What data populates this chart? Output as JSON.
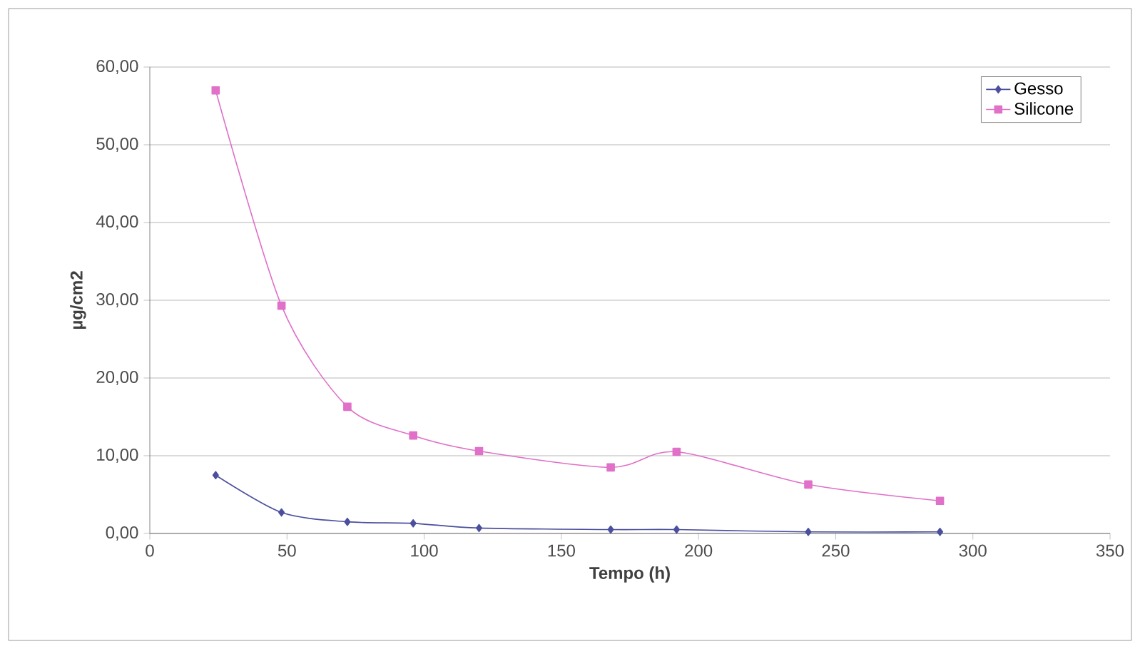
{
  "chart_data": {
    "type": "line",
    "xlabel": "Tempo (h)",
    "ylabel": "µg/cm2",
    "xlim": [
      0,
      350
    ],
    "xticks": [
      0,
      50,
      100,
      150,
      200,
      250,
      300,
      350
    ],
    "ylim": [
      0,
      60
    ],
    "yticks": [
      {
        "value": 0,
        "label": "0,00"
      },
      {
        "value": 10,
        "label": "10,00"
      },
      {
        "value": 20,
        "label": "20,00"
      },
      {
        "value": 30,
        "label": "30,00"
      },
      {
        "value": 40,
        "label": "40,00"
      },
      {
        "value": 50,
        "label": "50,00"
      },
      {
        "value": 60,
        "label": "60,00"
      }
    ],
    "grid": "y",
    "legend": "top right",
    "series": [
      {
        "name": "Gesso",
        "color": "#4b4f9e",
        "marker": "diamond",
        "x": [
          24,
          48,
          72,
          96,
          120,
          168,
          192,
          240,
          288
        ],
        "values": [
          7.5,
          2.7,
          1.5,
          1.3,
          0.7,
          0.5,
          0.5,
          0.2,
          0.2
        ]
      },
      {
        "name": "Silicone",
        "color": "#e070c8",
        "marker": "square",
        "x": [
          24,
          48,
          72,
          96,
          120,
          168,
          192,
          240,
          288
        ],
        "values": [
          57.0,
          29.3,
          16.3,
          12.6,
          10.6,
          8.5,
          10.5,
          6.3,
          4.2
        ]
      }
    ]
  }
}
